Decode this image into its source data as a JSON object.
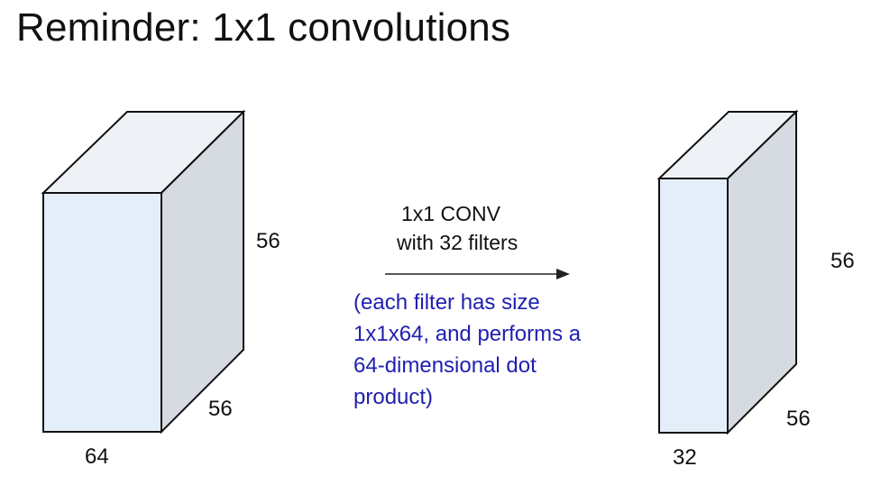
{
  "title": "Reminder: 1x1 convolutions",
  "input_volume": {
    "height_label": "56",
    "width_label": "56",
    "depth_label": "64"
  },
  "output_volume": {
    "height_label": "56",
    "width_label": "56",
    "depth_label": "32"
  },
  "operation": {
    "line1": "1x1 CONV",
    "line2": "with 32 filters"
  },
  "note": {
    "lines": [
      "(each filter has size",
      "1x1x64, and performs a",
      "64-dimensional dot",
      "product)"
    ]
  },
  "colors": {
    "front_face": "#e4eef9",
    "side_face": "#d6dbe2",
    "top_face": "#eef2f7",
    "stroke": "#111111",
    "note_text": "#2020b0"
  }
}
